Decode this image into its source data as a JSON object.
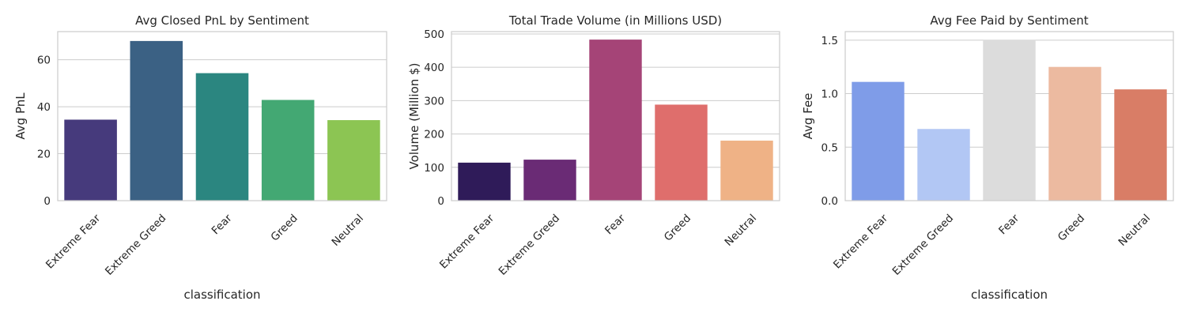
{
  "chart_data": [
    {
      "type": "bar",
      "title": "Avg Closed PnL by Sentiment",
      "xlabel": "classification",
      "ylabel": "Avg PnL",
      "categories": [
        "Extreme Fear",
        "Extreme Greed",
        "Fear",
        "Greed",
        "Neutral"
      ],
      "values": [
        34.5,
        68.0,
        54.3,
        42.9,
        34.3
      ],
      "ylim": [
        0,
        72
      ],
      "yticks": [
        0,
        20,
        40,
        60
      ],
      "ytick_labels": [
        "0",
        "20",
        "40",
        "60"
      ],
      "colors": [
        "#463a7c",
        "#3b6184",
        "#2b8680",
        "#43a873",
        "#8cc553"
      ],
      "grid": true
    },
    {
      "type": "bar",
      "title": "Total Trade Volume (in Millions USD)",
      "xlabel": "",
      "ylabel": "Volume (Million $)",
      "categories": [
        "Extreme Fear",
        "Extreme Greed",
        "Fear",
        "Greed",
        "Neutral"
      ],
      "values": [
        114,
        123,
        483,
        288,
        180
      ],
      "ylim": [
        0,
        507
      ],
      "yticks": [
        0,
        100,
        200,
        300,
        400,
        500
      ],
      "ytick_labels": [
        "0",
        "100",
        "200",
        "300",
        "400",
        "500"
      ],
      "colors": [
        "#2f1b59",
        "#6a2b75",
        "#a54477",
        "#df6e6c",
        "#efb286"
      ],
      "grid": true
    },
    {
      "type": "bar",
      "title": "Avg Fee Paid by Sentiment",
      "xlabel": "classification",
      "ylabel": "Avg Fee",
      "categories": [
        "Extreme Fear",
        "Extreme Greed",
        "Fear",
        "Greed",
        "Neutral"
      ],
      "values": [
        1.11,
        0.67,
        1.5,
        1.25,
        1.04
      ],
      "ylim": [
        0,
        1.58
      ],
      "yticks": [
        0,
        0.5,
        1.0,
        1.5
      ],
      "ytick_labels": [
        "0.0",
        "0.5",
        "1.0",
        "1.5"
      ],
      "colors": [
        "#7f9ce8",
        "#b2c7f4",
        "#dcdcdc",
        "#ecbaa0",
        "#d97d66"
      ],
      "grid": true
    }
  ]
}
